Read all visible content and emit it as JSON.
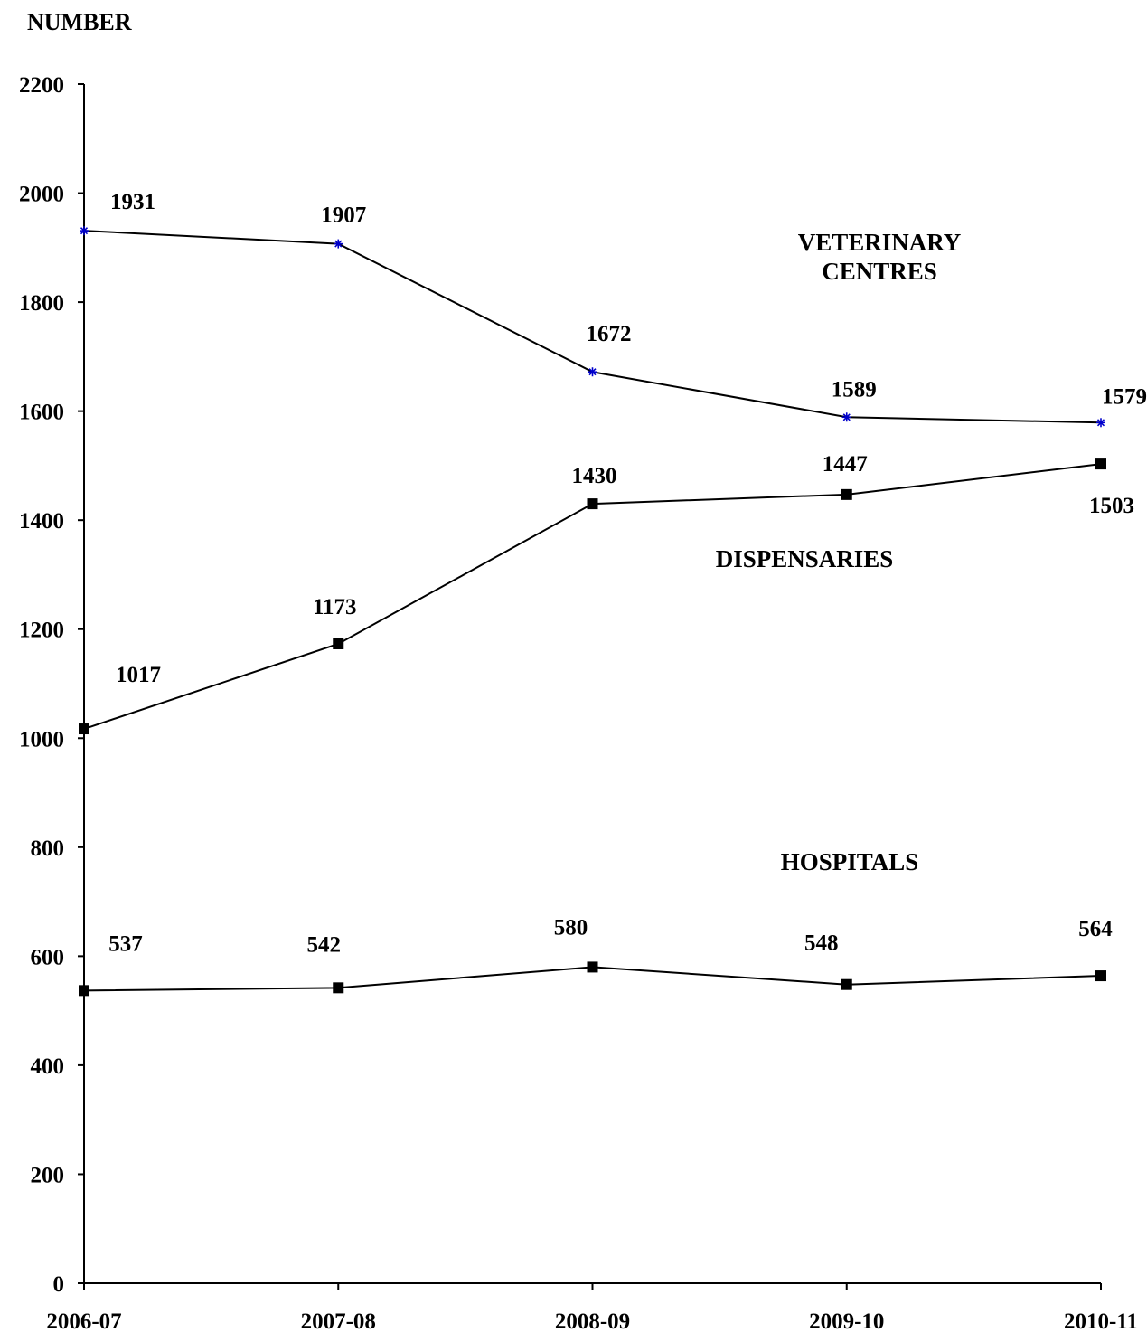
{
  "chart_data": {
    "type": "line",
    "ylabel": "NUMBER",
    "xlabel": "",
    "categories": [
      "2006-07",
      "2007-08",
      "2008-09",
      "2009-10",
      "2010-11"
    ],
    "ylim": [
      0,
      2200
    ],
    "yticks": [
      0,
      200,
      400,
      600,
      800,
      1000,
      1200,
      1400,
      1600,
      1800,
      2000,
      2200
    ],
    "grid": false,
    "legend": "none",
    "series": [
      {
        "name": "VETERINARY CENTRES",
        "label_lines": [
          "VETERINARY",
          "CENTRES"
        ],
        "values": [
          1931,
          1907,
          1672,
          1589,
          1579
        ],
        "marker": "asterisk",
        "marker_color": "#0000cc",
        "line_color": "#000000"
      },
      {
        "name": "DISPENSARIES",
        "label_lines": [
          "DISPENSARIES"
        ],
        "values": [
          1017,
          1173,
          1430,
          1447,
          1503
        ],
        "marker": "square",
        "marker_color": "#000000",
        "line_color": "#000000"
      },
      {
        "name": "HOSPITALS",
        "label_lines": [
          "HOSPITALS"
        ],
        "values": [
          537,
          542,
          580,
          548,
          564
        ],
        "marker": "square",
        "marker_color": "#000000",
        "line_color": "#000000"
      }
    ]
  }
}
